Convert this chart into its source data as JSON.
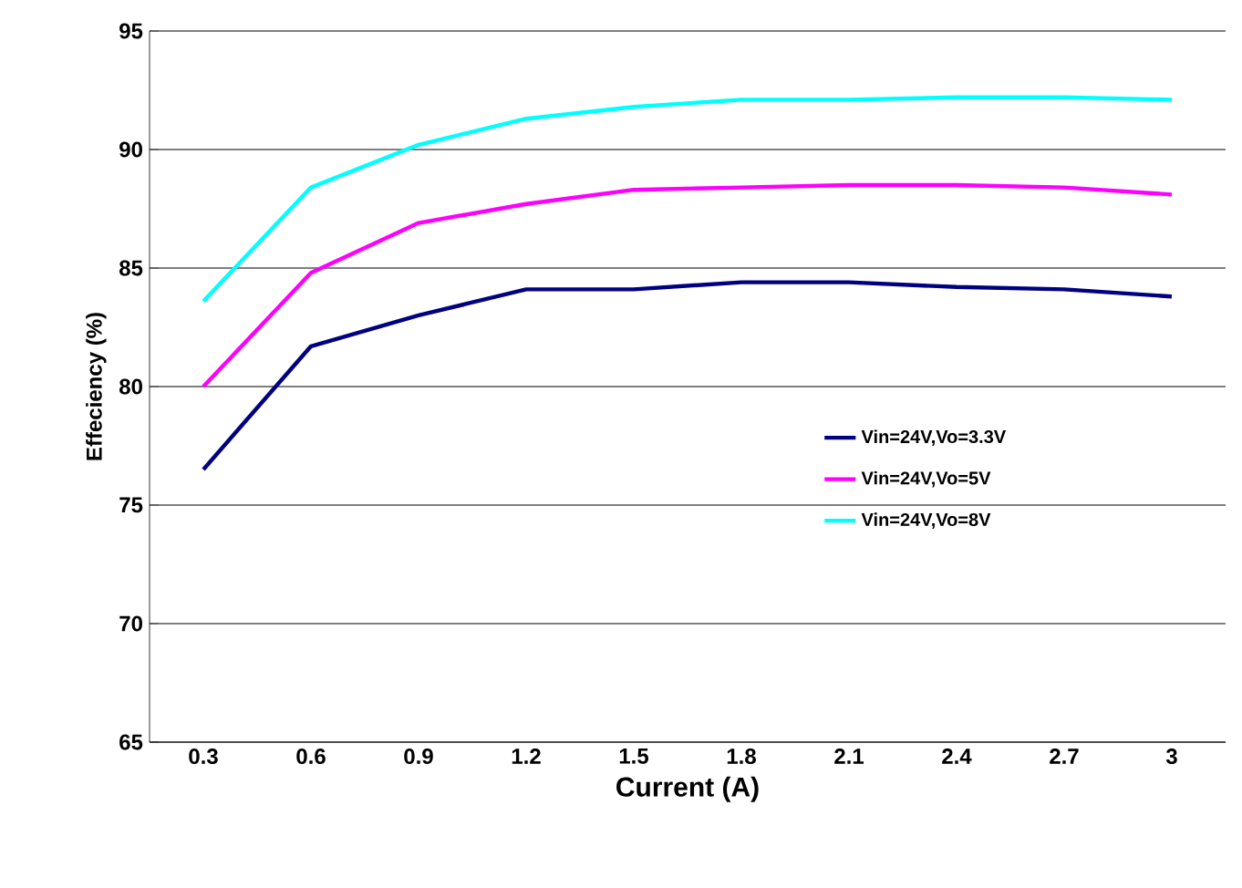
{
  "chart_data": {
    "type": "line",
    "xlabel": "Current (A)",
    "ylabel": "Effeciency (%)",
    "categories": [
      "0.3",
      "0.6",
      "0.9",
      "1.2",
      "1.5",
      "1.8",
      "2.1",
      "2.4",
      "2.7",
      "3"
    ],
    "ylim": [
      65,
      95
    ],
    "yticks": [
      65,
      70,
      75,
      80,
      85,
      90,
      95
    ],
    "grid": "y",
    "legend": "right",
    "marker": "none",
    "line_style": "solid",
    "series": [
      {
        "name": "Vin=24V,Vo=3.3V",
        "color": "#000080",
        "values": [
          76.5,
          81.7,
          83.0,
          84.1,
          84.1,
          84.4,
          84.4,
          84.2,
          84.1,
          83.8
        ]
      },
      {
        "name": "Vin=24V,Vo=5V",
        "color": "#ff00ff",
        "values": [
          80.0,
          84.8,
          86.9,
          87.7,
          88.3,
          88.4,
          88.5,
          88.5,
          88.4,
          88.1
        ]
      },
      {
        "name": "Vin=24V,Vo=8V",
        "color": "#00ffff",
        "values": [
          83.6,
          88.4,
          90.2,
          91.3,
          91.8,
          92.1,
          92.1,
          92.2,
          92.2,
          92.1
        ]
      }
    ]
  }
}
